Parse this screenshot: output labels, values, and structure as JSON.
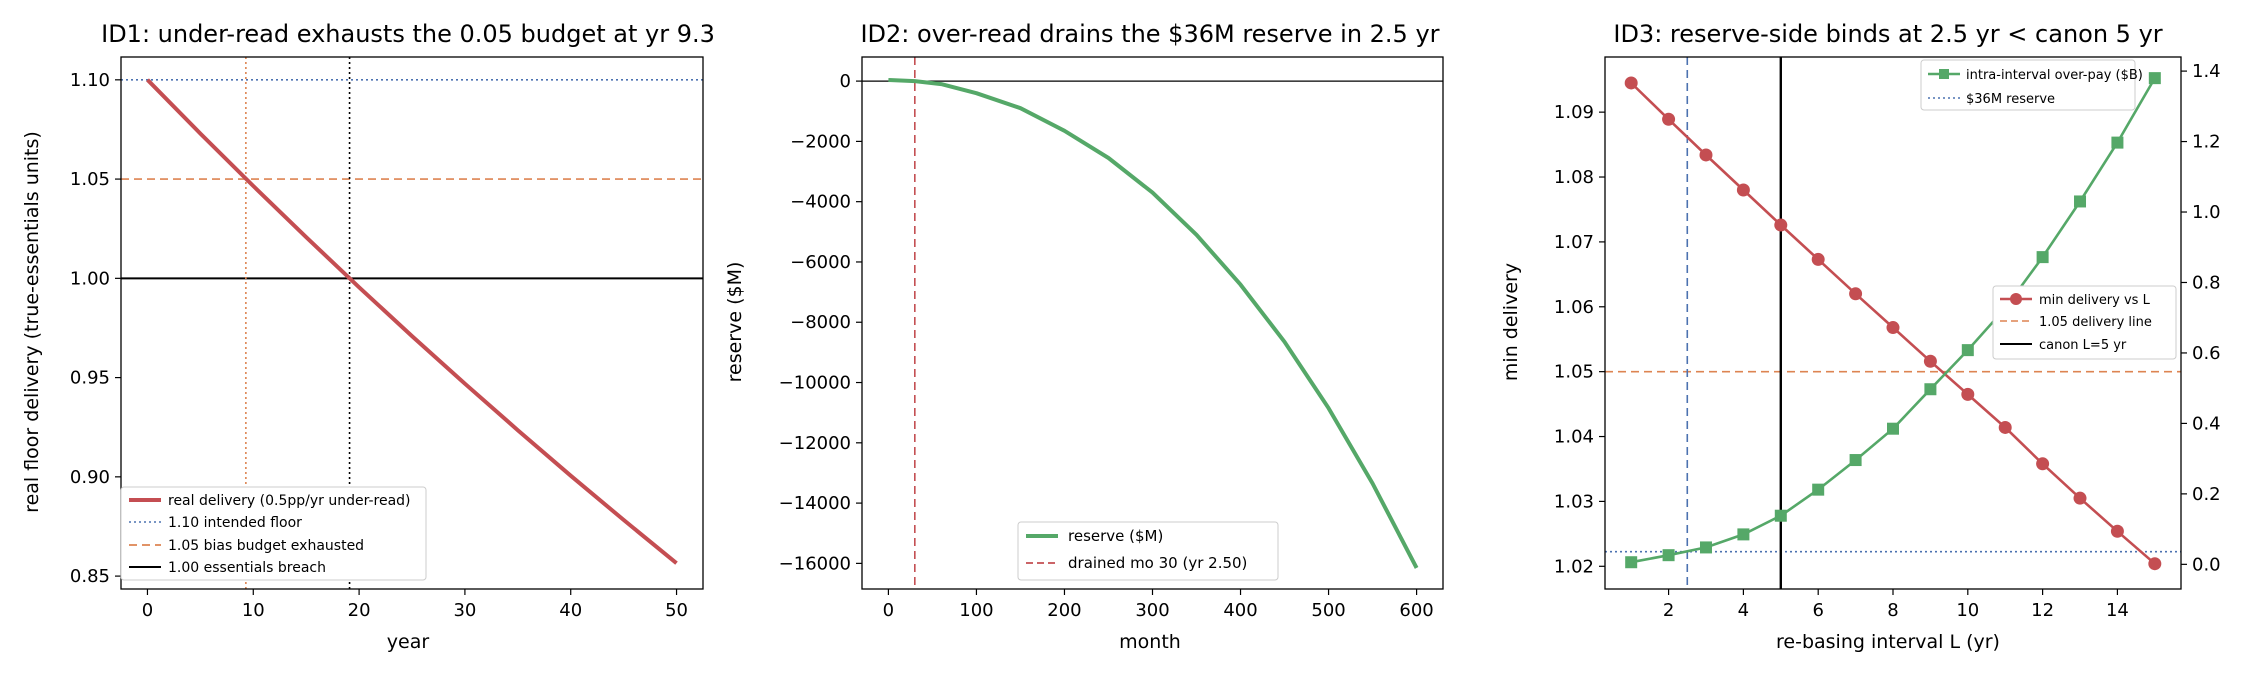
{
  "colors": {
    "red": "#c44e52",
    "green": "#55a868",
    "blue": "#4c72b0",
    "orange": "#dd8452",
    "black": "#000000"
  },
  "chart_data": [
    {
      "id": "p1",
      "type": "line",
      "title": "ID1: under-read exhausts the 0.05 budget at yr 9.3",
      "xlabel": "year",
      "ylabel": "real floor delivery (true-essentials units)",
      "xlim": [
        -2.5,
        52.5
      ],
      "ylim": [
        0.8435,
        1.1115
      ],
      "xticks": [
        0,
        10,
        20,
        30,
        40,
        50
      ],
      "yticks": [
        0.85,
        0.9,
        0.95,
        1.0,
        1.05,
        1.1
      ],
      "ytick_labels": [
        "0.85",
        "0.90",
        "0.95",
        "1.00",
        "1.05",
        "1.10"
      ],
      "series": [
        {
          "name": "real delivery (0.5pp/yr under-read)",
          "color": "#c44e52",
          "style": "solid",
          "x": [
            0,
            5,
            10,
            15,
            20,
            25,
            30,
            35,
            40,
            45,
            50
          ],
          "y": [
            1.1,
            1.0729,
            1.0465,
            1.0207,
            0.9955,
            0.9709,
            0.9469,
            0.9235,
            0.9006,
            0.8783,
            0.8565
          ]
        }
      ],
      "hlines": [
        {
          "y": 1.1,
          "label": "1.10 intended floor",
          "color": "#4c72b0",
          "style": "dotted"
        },
        {
          "y": 1.05,
          "label": "1.05 bias budget exhausted",
          "color": "#dd8452",
          "style": "dashed"
        },
        {
          "y": 1.0,
          "label": "1.00 essentials breach",
          "color": "#000000",
          "style": "solid"
        }
      ],
      "vlines": [
        {
          "x": 9.3,
          "color": "#dd8452",
          "style": "dotted"
        },
        {
          "x": 19.1,
          "color": "#000000",
          "style": "dotted"
        }
      ],
      "legend": {
        "position": "lower-left",
        "entries": [
          "real delivery (0.5pp/yr under-read)",
          "1.10 intended floor",
          "1.05 bias budget exhausted",
          "1.00 essentials breach"
        ]
      }
    },
    {
      "id": "p2",
      "type": "line",
      "title": "ID2: over-read drains the $36M reserve in 2.5 yr",
      "xlabel": "month",
      "ylabel": "reserve ($M)",
      "xlim": [
        -30,
        630
      ],
      "ylim": [
        -16850,
        800
      ],
      "xticks": [
        0,
        100,
        200,
        300,
        400,
        500,
        600
      ],
      "yticks": [
        0,
        -2000,
        -4000,
        -6000,
        -8000,
        -10000,
        -12000,
        -14000,
        -16000
      ],
      "ytick_labels": [
        "0",
        "−2000",
        "−4000",
        "−6000",
        "−8000",
        "−10000",
        "−12000",
        "−14000",
        "−16000"
      ],
      "series": [
        {
          "name": "reserve ($M)",
          "color": "#55a868",
          "style": "solid",
          "x": [
            0,
            30,
            60,
            100,
            150,
            200,
            250,
            300,
            350,
            400,
            450,
            500,
            550,
            600
          ],
          "y": [
            36,
            0,
            -100,
            -400,
            -900,
            -1650,
            -2550,
            -3700,
            -5100,
            -6750,
            -8650,
            -10850,
            -13350,
            -16150
          ]
        }
      ],
      "hlines": [
        {
          "y": 0,
          "color": "#000000",
          "style": "solid"
        }
      ],
      "vlines": [
        {
          "x": 30,
          "label": "drained mo 30 (yr 2.50)",
          "color": "#c44e52",
          "style": "dashed"
        }
      ],
      "legend": {
        "position": "lower-center",
        "entries": [
          "reserve ($M)",
          "drained mo 30 (yr 2.50)"
        ]
      }
    },
    {
      "id": "p3",
      "type": "line",
      "title": "ID3: reserve-side binds at 2.5 yr < canon 5 yr",
      "xlabel": "re-basing interval L (yr)",
      "ylabel": "min delivery",
      "xlim": [
        0.3,
        15.7
      ],
      "ylim": [
        1.0165,
        1.0985
      ],
      "xticks": [
        2,
        4,
        6,
        8,
        10,
        12,
        14
      ],
      "yticks": [
        1.02,
        1.03,
        1.04,
        1.05,
        1.06,
        1.07,
        1.08,
        1.09
      ],
      "ytick_labels": [
        "1.02",
        "1.03",
        "1.04",
        "1.05",
        "1.06",
        "1.07",
        "1.08",
        "1.09"
      ],
      "y2lim": [
        -0.07,
        1.44
      ],
      "y2ticks": [
        0.0,
        0.2,
        0.4,
        0.6,
        0.8,
        1.0,
        1.2,
        1.4
      ],
      "y2tick_labels": [
        "0.0",
        "0.2",
        "0.4",
        "0.6",
        "0.8",
        "1.0",
        "1.2",
        "1.4"
      ],
      "series": [
        {
          "name": "min delivery vs L",
          "axis": "left",
          "color": "#c44e52",
          "marker": "circle",
          "x": [
            1,
            2,
            3,
            4,
            5,
            6,
            7,
            8,
            9,
            10,
            11,
            12,
            13,
            14,
            15
          ],
          "y": [
            1.0945,
            1.0889,
            1.0834,
            1.078,
            1.0726,
            1.0673,
            1.062,
            1.0568,
            1.0516,
            1.0465,
            1.0414,
            1.0358,
            1.0305,
            1.0254,
            1.0204
          ]
        },
        {
          "name": "intra-interval over-pay ($B)",
          "axis": "right",
          "color": "#55a868",
          "marker": "square",
          "x": [
            1,
            2,
            3,
            4,
            5,
            6,
            7,
            8,
            9,
            10,
            11,
            12,
            13,
            14,
            15
          ],
          "y": [
            0.006,
            0.026,
            0.048,
            0.085,
            0.138,
            0.212,
            0.296,
            0.385,
            0.497,
            0.608,
            0.727,
            0.872,
            1.03,
            1.197,
            1.38
          ]
        }
      ],
      "hlines": [
        {
          "y": 1.05,
          "axis": "left",
          "label": "1.05 delivery line",
          "color": "#dd8452",
          "style": "dashed"
        },
        {
          "y": 0.036,
          "axis": "right",
          "label": "$36M reserve",
          "color": "#4c72b0",
          "style": "dotted"
        }
      ],
      "vlines": [
        {
          "x": 2.5,
          "color": "#4c72b0",
          "style": "dashed"
        },
        {
          "x": 5,
          "label": "canon L=5 yr",
          "color": "#000000",
          "style": "solid"
        }
      ],
      "legends": [
        {
          "position": "upper-right",
          "entries": [
            "intra-interval over-pay ($B)",
            "$36M reserve"
          ]
        },
        {
          "position": "center-right",
          "entries": [
            "min delivery vs L",
            "1.05 delivery line",
            "canon L=5 yr"
          ]
        }
      ]
    }
  ]
}
